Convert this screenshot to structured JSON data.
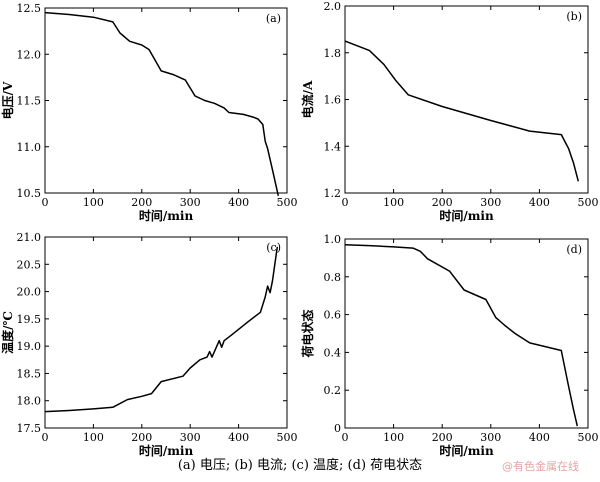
{
  "caption": "(a) 电压; (b) 电流; (c) 温度; (d) 荷电状态",
  "watermark": "@有色金属在线",
  "chart_data": [
    {
      "type": "line",
      "panel_label": "(a)",
      "xlabel": "时间/min",
      "ylabel": "电压/V",
      "xlim": [
        0,
        500
      ],
      "ylim": [
        10.5,
        12.5
      ],
      "xticks": [
        0,
        100,
        200,
        300,
        400,
        500
      ],
      "yticks": [
        10.5,
        11.0,
        11.5,
        12.0,
        12.5
      ],
      "xtick_labels": [
        "0",
        "100",
        "200",
        "300",
        "400",
        "500"
      ],
      "ytick_labels": [
        "10.5",
        "11.0",
        "11.5",
        "12.0",
        "12.5"
      ],
      "x": [
        0,
        50,
        100,
        140,
        155,
        175,
        200,
        215,
        240,
        265,
        290,
        310,
        330,
        350,
        370,
        380,
        410,
        430,
        440,
        450,
        455,
        460,
        470,
        482
      ],
      "y": [
        12.45,
        12.43,
        12.4,
        12.35,
        12.23,
        12.14,
        12.1,
        12.05,
        11.82,
        11.78,
        11.72,
        11.55,
        11.5,
        11.47,
        11.42,
        11.37,
        11.35,
        11.32,
        11.3,
        11.24,
        11.06,
        10.98,
        10.75,
        10.47
      ]
    },
    {
      "type": "line",
      "panel_label": "(b)",
      "xlabel": "时间/min",
      "ylabel": "电流/A",
      "xlim": [
        0,
        500
      ],
      "ylim": [
        1.2,
        2.0
      ],
      "xticks": [
        0,
        100,
        200,
        300,
        400,
        500
      ],
      "yticks": [
        1.2,
        1.4,
        1.6,
        1.8,
        2.0
      ],
      "xtick_labels": [
        "0",
        "100",
        "200",
        "300",
        "400",
        "500"
      ],
      "ytick_labels": [
        "1.2",
        "1.4",
        "1.6",
        "1.8",
        "2.0"
      ],
      "x": [
        0,
        50,
        80,
        105,
        130,
        200,
        300,
        380,
        445,
        460,
        470,
        480
      ],
      "y": [
        1.85,
        1.81,
        1.75,
        1.68,
        1.62,
        1.57,
        1.51,
        1.465,
        1.45,
        1.39,
        1.33,
        1.25
      ]
    },
    {
      "type": "line",
      "panel_label": "(c)",
      "xlabel": "时间/min",
      "ylabel": "温度/℃",
      "xlim": [
        0,
        500
      ],
      "ylim": [
        17.5,
        21.0
      ],
      "xticks": [
        0,
        100,
        200,
        300,
        400,
        500
      ],
      "yticks": [
        17.5,
        18.0,
        18.5,
        19.0,
        19.5,
        20.0,
        20.5,
        21.0
      ],
      "xtick_labels": [
        "0",
        "100",
        "200",
        "300",
        "400",
        "500"
      ],
      "ytick_labels": [
        "17.5",
        "18.0",
        "18.5",
        "19.0",
        "19.5",
        "20.0",
        "20.5",
        "21.0"
      ],
      "x": [
        0,
        50,
        100,
        140,
        170,
        200,
        220,
        240,
        285,
        300,
        320,
        335,
        340,
        345,
        360,
        365,
        370,
        385,
        420,
        445,
        455,
        460,
        465,
        470,
        480
      ],
      "y": [
        17.8,
        17.82,
        17.85,
        17.88,
        18.02,
        18.08,
        18.13,
        18.35,
        18.45,
        18.6,
        18.75,
        18.8,
        18.9,
        18.8,
        19.1,
        18.98,
        19.1,
        19.2,
        19.45,
        19.62,
        19.9,
        20.1,
        19.98,
        20.2,
        20.82
      ]
    },
    {
      "type": "line",
      "panel_label": "(d)",
      "xlabel": "时间/min",
      "ylabel": "荷电状态",
      "xlim": [
        0,
        500
      ],
      "ylim": [
        0,
        1.0
      ],
      "xticks": [
        0,
        100,
        200,
        300,
        400,
        500
      ],
      "yticks": [
        0,
        0.2,
        0.4,
        0.6,
        0.8,
        1.0
      ],
      "xtick_labels": [
        "0",
        "100",
        "200",
        "300",
        "400",
        "500"
      ],
      "ytick_labels": [
        "0",
        "0.2",
        "0.4",
        "0.6",
        "0.8",
        "1.0"
      ],
      "x": [
        0,
        50,
        100,
        140,
        155,
        170,
        215,
        245,
        290,
        310,
        330,
        350,
        380,
        445,
        460,
        470,
        478
      ],
      "y": [
        0.97,
        0.965,
        0.958,
        0.952,
        0.935,
        0.895,
        0.83,
        0.73,
        0.68,
        0.585,
        0.54,
        0.5,
        0.45,
        0.41,
        0.22,
        0.1,
        0.01
      ]
    }
  ]
}
